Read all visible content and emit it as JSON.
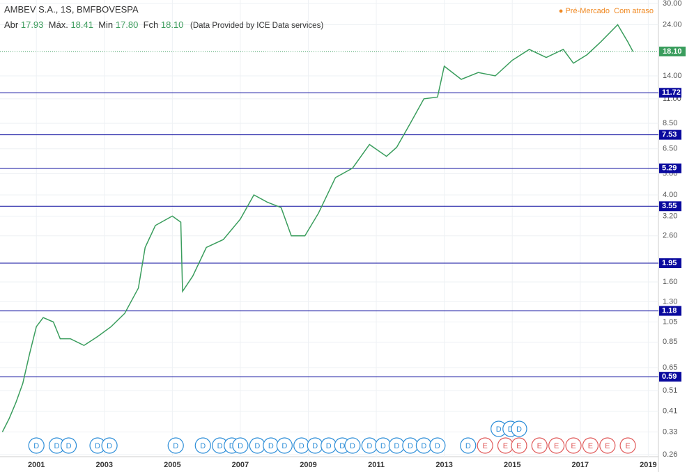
{
  "header": {
    "symbol": "AMBEV S.A., 1S, BMFBOVESPA",
    "open_label": "Abr",
    "open": "17.93",
    "high_label": "Máx.",
    "high": "18.41",
    "low_label": "Min",
    "low": "17.80",
    "close_label": "Fch",
    "close": "18.10",
    "note": "(Data Provided by ICE Data services)",
    "status": "Pré-Mercado",
    "delay": "Com atraso"
  },
  "chart_data": {
    "type": "line",
    "log_scale": true,
    "grid": true,
    "x": [
      2000.0,
      2000.2,
      2000.4,
      2000.6,
      2000.8,
      2001.0,
      2001.2,
      2001.5,
      2001.7,
      2002.0,
      2002.4,
      2002.8,
      2003.2,
      2003.6,
      2004.0,
      2004.2,
      2004.5,
      2005.0,
      2005.25,
      2005.3,
      2005.6,
      2006.0,
      2006.5,
      2007.0,
      2007.4,
      2007.8,
      2008.2,
      2008.5,
      2008.9,
      2009.3,
      2009.8,
      2010.3,
      2010.8,
      2011.3,
      2011.6,
      2012.0,
      2012.4,
      2012.8,
      2013.0,
      2013.5,
      2014.0,
      2014.5,
      2015.0,
      2015.5,
      2016.0,
      2016.5,
      2016.8,
      2017.2,
      2017.6,
      2018.1,
      2018.4,
      2018.55
    ],
    "series": [
      {
        "name": "AMBEV S.A.",
        "color": "#3a9d5d",
        "values": [
          0.33,
          0.38,
          0.45,
          0.55,
          0.75,
          1.0,
          1.1,
          1.05,
          0.88,
          0.88,
          0.82,
          0.9,
          1.0,
          1.15,
          1.5,
          2.3,
          2.9,
          3.2,
          3.0,
          1.45,
          1.7,
          2.3,
          2.5,
          3.1,
          4.0,
          3.7,
          3.5,
          2.6,
          2.6,
          3.3,
          4.8,
          5.3,
          6.8,
          6.0,
          6.6,
          8.5,
          11.0,
          11.2,
          15.5,
          13.5,
          14.5,
          14.0,
          16.5,
          18.5,
          17.0,
          18.5,
          16.0,
          17.5,
          20.0,
          24.0,
          20.0,
          18.1
        ]
      }
    ],
    "xlim": [
      1999.93,
      2019.3
    ],
    "xticks": [
      2001,
      2003,
      2005,
      2007,
      2009,
      2011,
      2013,
      2015,
      2017,
      2019
    ],
    "ylim": [
      0.26,
      30
    ],
    "yticks": [
      {
        "value": 30,
        "label": "30.00"
      },
      {
        "value": 24,
        "label": "24.00"
      },
      {
        "value": 14,
        "label": "14.00"
      },
      {
        "value": 11,
        "label": "11.00"
      },
      {
        "value": 8.5,
        "label": "8.50"
      },
      {
        "value": 6.5,
        "label": "6.50"
      },
      {
        "value": 5,
        "label": "5.00"
      },
      {
        "value": 4,
        "label": "4.00"
      },
      {
        "value": 3.2,
        "label": "3.20"
      },
      {
        "value": 2.6,
        "label": "2.60"
      },
      {
        "value": 1.6,
        "label": "1.60"
      },
      {
        "value": 1.3,
        "label": "1.30"
      },
      {
        "value": 1.05,
        "label": "1.05"
      },
      {
        "value": 0.85,
        "label": "0.85"
      },
      {
        "value": 0.65,
        "label": "0.65"
      },
      {
        "value": 0.51,
        "label": "0.51"
      },
      {
        "value": 0.41,
        "label": "0.41"
      },
      {
        "value": 0.33,
        "label": "0.33"
      },
      {
        "value": 0.26,
        "label": "0.26"
      }
    ],
    "price_line": {
      "value": 18.1,
      "label": "18.10",
      "color": "#3a9d5d"
    },
    "levels": [
      11.72,
      7.53,
      5.29,
      3.55,
      1.95,
      1.18,
      0.59
    ],
    "level_color": "#0a0a9e",
    "events": [
      {
        "x": 2001.0,
        "label": "D"
      },
      {
        "x": 2001.6,
        "label": "D"
      },
      {
        "x": 2001.95,
        "label": "D"
      },
      {
        "x": 2002.8,
        "label": "D"
      },
      {
        "x": 2003.15,
        "label": "D"
      },
      {
        "x": 2005.1,
        "label": "D"
      },
      {
        "x": 2005.9,
        "label": "D"
      },
      {
        "x": 2006.4,
        "label": "D"
      },
      {
        "x": 2006.75,
        "label": "D"
      },
      {
        "x": 2007.0,
        "label": "D"
      },
      {
        "x": 2007.5,
        "label": "D"
      },
      {
        "x": 2007.9,
        "label": "D"
      },
      {
        "x": 2008.3,
        "label": "D"
      },
      {
        "x": 2008.8,
        "label": "D"
      },
      {
        "x": 2009.2,
        "label": "D"
      },
      {
        "x": 2009.6,
        "label": "D"
      },
      {
        "x": 2010.0,
        "label": "D"
      },
      {
        "x": 2010.3,
        "label": "D"
      },
      {
        "x": 2010.8,
        "label": "D"
      },
      {
        "x": 2011.2,
        "label": "D"
      },
      {
        "x": 2011.6,
        "label": "D"
      },
      {
        "x": 2012.0,
        "label": "D"
      },
      {
        "x": 2012.4,
        "label": "D"
      },
      {
        "x": 2012.8,
        "label": "D"
      },
      {
        "x": 2013.7,
        "label": "D"
      },
      {
        "x": 2014.2,
        "label": "E"
      },
      {
        "x": 2014.8,
        "label": "E"
      },
      {
        "x": 2015.2,
        "label": "E"
      },
      {
        "x": 2015.8,
        "label": "E"
      },
      {
        "x": 2016.3,
        "label": "E"
      },
      {
        "x": 2016.8,
        "label": "E"
      },
      {
        "x": 2017.3,
        "label": "E"
      },
      {
        "x": 2017.8,
        "label": "E"
      },
      {
        "x": 2018.4,
        "label": "E"
      },
      {
        "x": 2014.6,
        "label": "D",
        "row": 2
      },
      {
        "x": 2014.95,
        "label": "D",
        "row": 2
      },
      {
        "x": 2015.2,
        "label": "D",
        "row": 2
      }
    ]
  }
}
